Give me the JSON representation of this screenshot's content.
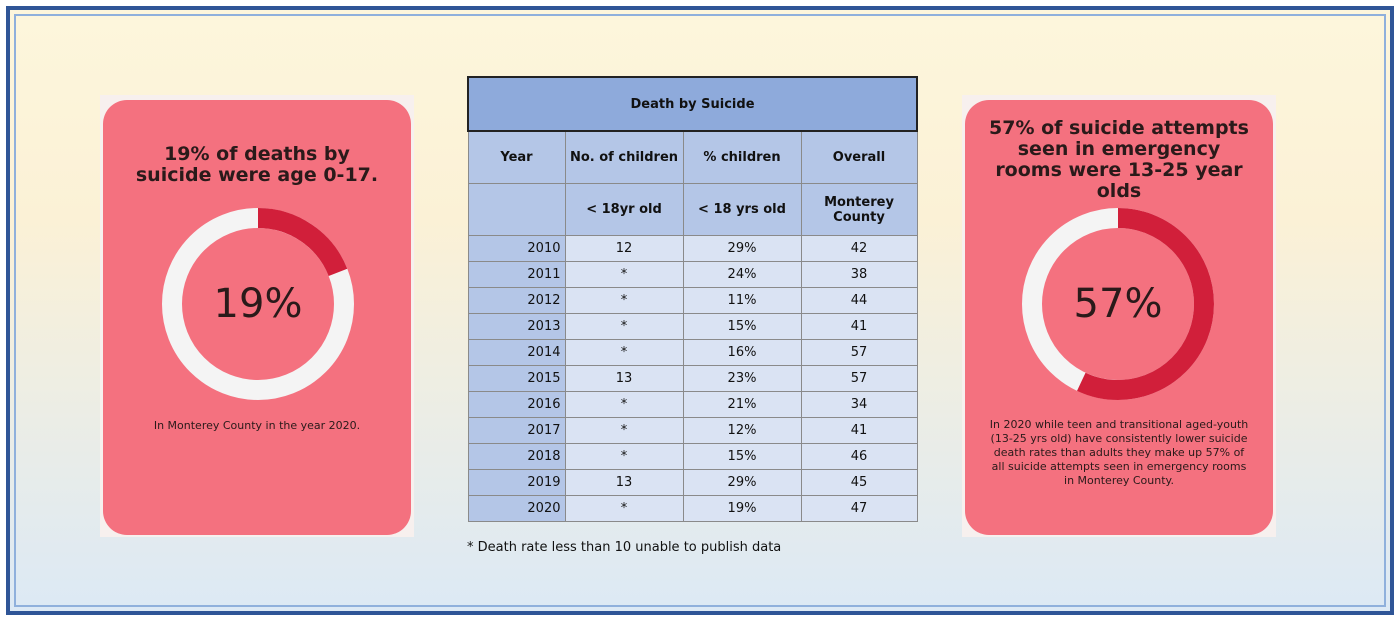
{
  "left_card": {
    "title": "19% of deaths by suicide were age 0-17.",
    "percent": 19,
    "percent_label": "19%",
    "note": "In Monterey County in the year 2020."
  },
  "table": {
    "title": "Death by Suicide",
    "header": [
      "Year",
      "No. of children",
      "% children",
      "Overall"
    ],
    "subheader": [
      "< 18yr old",
      "< 18 yrs old",
      "Monterey County"
    ],
    "rows": [
      [
        "2010",
        "12",
        "29%",
        "42"
      ],
      [
        "2011",
        "*",
        "24%",
        "38"
      ],
      [
        "2012",
        "*",
        "11%",
        "44"
      ],
      [
        "2013",
        "*",
        "15%",
        "41"
      ],
      [
        "2014",
        "*",
        "16%",
        "57"
      ],
      [
        "2015",
        "13",
        "23%",
        "57"
      ],
      [
        "2016",
        "*",
        "21%",
        "34"
      ],
      [
        "2017",
        "*",
        "12%",
        "41"
      ],
      [
        "2018",
        "*",
        "15%",
        "46"
      ],
      [
        "2019",
        "13",
        "29%",
        "45"
      ],
      [
        "2020",
        "*",
        "19%",
        "47"
      ]
    ],
    "footnote": "* Death rate less than 10 unable to publish data"
  },
  "right_card": {
    "title": "57% of suicide attempts seen in emergency rooms were 13-25 year olds",
    "percent": 57,
    "percent_label": "57%",
    "note": "In 2020 while teen and transitional aged-youth (13-25 yrs old) have consistently lower suicide death rates than adults they make up 57% of all suicide attempts seen in emergency rooms in Monterey County."
  }
}
